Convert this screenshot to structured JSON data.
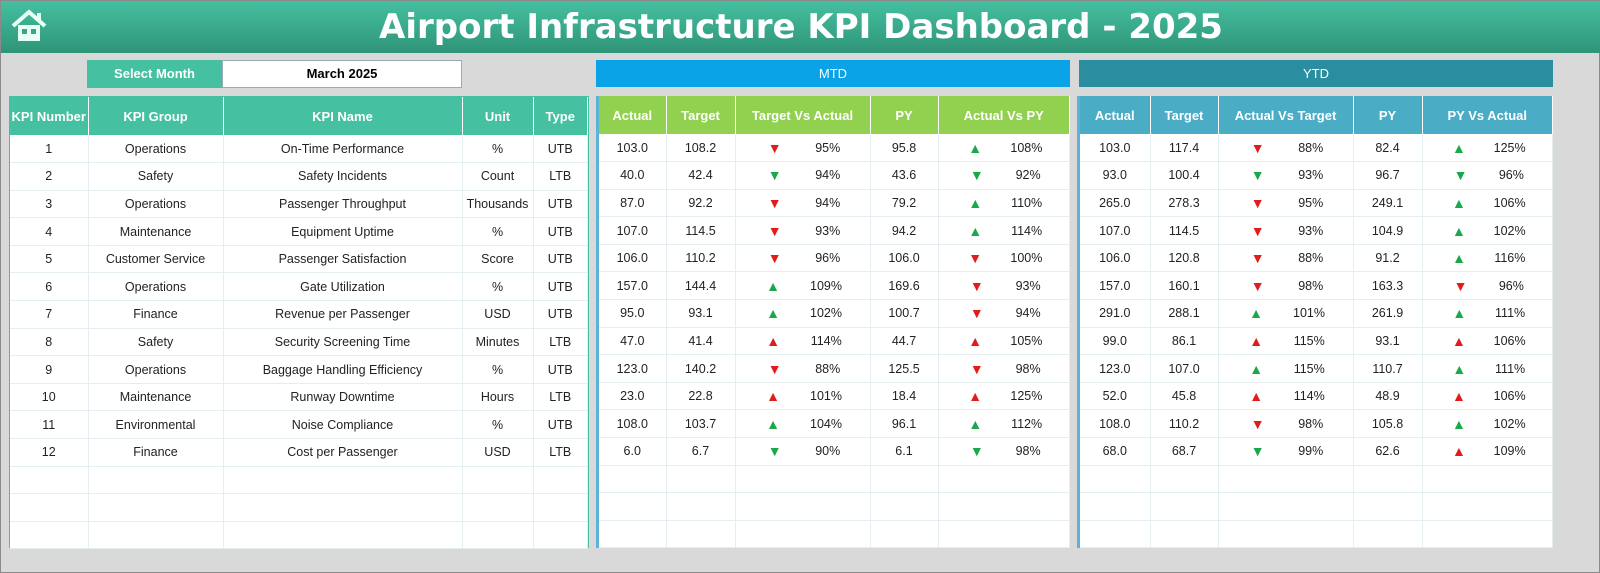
{
  "title": "Airport Infrastructure KPI Dashboard - 2025",
  "select_month": {
    "label": "Select Month",
    "value": "March 2025"
  },
  "colors": {
    "teal": "#45c0a0",
    "mtd_band": "#0aa3e8",
    "ytd_band": "#2a8ea0",
    "mtd_header": "#92d050",
    "ytd_header": "#4bacc6",
    "up_good": "#1aa84a",
    "bad": "#e21b1b"
  },
  "mtd_label": "MTD",
  "ytd_label": "YTD",
  "kpi_headers": [
    "KPI Number",
    "KPI Group",
    "KPI Name",
    "Unit",
    "Type"
  ],
  "mtd_headers": [
    "Actual",
    "Target",
    "Target Vs Actual",
    "PY",
    "Actual Vs PY"
  ],
  "ytd_headers": [
    "Actual",
    "Target",
    "Actual Vs Target",
    "PY",
    "PY Vs Actual"
  ],
  "kpis": [
    [
      "1",
      "Operations",
      "On-Time Performance",
      "%",
      "UTB"
    ],
    [
      "2",
      "Safety",
      "Safety Incidents",
      "Count",
      "LTB"
    ],
    [
      "3",
      "Operations",
      "Passenger Throughput",
      "Thousands",
      "UTB"
    ],
    [
      "4",
      "Maintenance",
      "Equipment Uptime",
      "%",
      "UTB"
    ],
    [
      "5",
      "Customer Service",
      "Passenger Satisfaction",
      "Score",
      "UTB"
    ],
    [
      "6",
      "Operations",
      "Gate Utilization",
      "%",
      "UTB"
    ],
    [
      "7",
      "Finance",
      "Revenue per Passenger",
      "USD",
      "UTB"
    ],
    [
      "8",
      "Safety",
      "Security Screening Time",
      "Minutes",
      "LTB"
    ],
    [
      "9",
      "Operations",
      "Baggage Handling Efficiency",
      "%",
      "UTB"
    ],
    [
      "10",
      "Maintenance",
      "Runway Downtime",
      "Hours",
      "LTB"
    ],
    [
      "11",
      "Environmental",
      "Noise Compliance",
      "%",
      "UTB"
    ],
    [
      "12",
      "Finance",
      "Cost per Passenger",
      "USD",
      "LTB"
    ]
  ],
  "mtd": [
    [
      "103.0",
      "108.2",
      "down-red",
      "95%",
      "95.8",
      "up-green",
      "108%"
    ],
    [
      "40.0",
      "42.4",
      "down-green",
      "94%",
      "43.6",
      "down-green",
      "92%"
    ],
    [
      "87.0",
      "92.2",
      "down-red",
      "94%",
      "79.2",
      "up-green",
      "110%"
    ],
    [
      "107.0",
      "114.5",
      "down-red",
      "93%",
      "94.2",
      "up-green",
      "114%"
    ],
    [
      "106.0",
      "110.2",
      "down-red",
      "96%",
      "106.0",
      "down-red",
      "100%"
    ],
    [
      "157.0",
      "144.4",
      "up-green",
      "109%",
      "169.6",
      "down-red",
      "93%"
    ],
    [
      "95.0",
      "93.1",
      "up-green",
      "102%",
      "100.7",
      "down-red",
      "94%"
    ],
    [
      "47.0",
      "41.4",
      "up-red",
      "114%",
      "44.7",
      "up-red",
      "105%"
    ],
    [
      "123.0",
      "140.2",
      "down-red",
      "88%",
      "125.5",
      "down-red",
      "98%"
    ],
    [
      "23.0",
      "22.8",
      "up-red",
      "101%",
      "18.4",
      "up-red",
      "125%"
    ],
    [
      "108.0",
      "103.7",
      "up-green",
      "104%",
      "96.1",
      "up-green",
      "112%"
    ],
    [
      "6.0",
      "6.7",
      "down-green",
      "90%",
      "6.1",
      "down-green",
      "98%"
    ]
  ],
  "ytd": [
    [
      "103.0",
      "117.4",
      "down-red",
      "88%",
      "82.4",
      "up-green",
      "125%"
    ],
    [
      "93.0",
      "100.4",
      "down-green",
      "93%",
      "96.7",
      "down-green",
      "96%"
    ],
    [
      "265.0",
      "278.3",
      "down-red",
      "95%",
      "249.1",
      "up-green",
      "106%"
    ],
    [
      "107.0",
      "114.5",
      "down-red",
      "93%",
      "104.9",
      "up-green",
      "102%"
    ],
    [
      "106.0",
      "120.8",
      "down-red",
      "88%",
      "91.2",
      "up-green",
      "116%"
    ],
    [
      "157.0",
      "160.1",
      "down-red",
      "98%",
      "163.3",
      "down-red",
      "96%"
    ],
    [
      "291.0",
      "288.1",
      "up-green",
      "101%",
      "261.9",
      "up-green",
      "111%"
    ],
    [
      "99.0",
      "86.1",
      "up-red",
      "115%",
      "93.1",
      "up-red",
      "106%"
    ],
    [
      "123.0",
      "107.0",
      "up-green",
      "115%",
      "110.7",
      "up-green",
      "111%"
    ],
    [
      "52.0",
      "45.8",
      "up-red",
      "114%",
      "48.9",
      "up-red",
      "106%"
    ],
    [
      "108.0",
      "110.2",
      "down-red",
      "98%",
      "105.8",
      "up-green",
      "102%"
    ],
    [
      "68.0",
      "68.7",
      "down-green",
      "99%",
      "62.6",
      "up-red",
      "109%"
    ]
  ]
}
